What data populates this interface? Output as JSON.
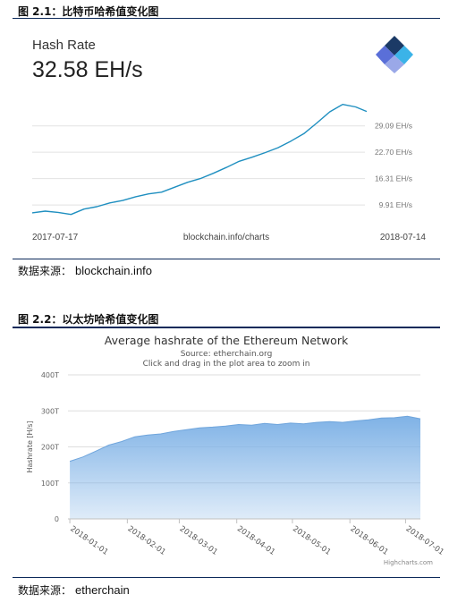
{
  "captions": {
    "fig1": "图 2.1：比特币哈希值变化图",
    "fig2": "图 2.2：以太坊哈希值变化图",
    "src1_prefix": "数据来源：",
    "src1_value": "blockchain.info",
    "src2_prefix": "数据来源：",
    "src2_value": "etherchain"
  },
  "chart1": {
    "label": "Hash Rate",
    "value": "32.58 EH/s",
    "date_start": "2017-07-17",
    "date_end": "2018-07-14",
    "source_text": "blockchain.info/charts",
    "logo_colors": [
      "#1b3a66",
      "#3bb3e8",
      "#5a6fd8",
      "#9aa8e8"
    ]
  },
  "chart2": {
    "title": "Average hashrate of the Ethereum Network",
    "subtitle1": "Source: etherchain.org",
    "subtitle2": "Click and drag in the plot area to zoom in",
    "credit": "Highcharts.com"
  },
  "chart_data": [
    {
      "type": "line",
      "title": "Hash Rate",
      "ylabel": "",
      "y_unit": "EH/s",
      "ylim": [
        4.5,
        37.5
      ],
      "ticks": [
        {
          "value": 9.91,
          "label": "9.91 EH/s"
        },
        {
          "value": 16.31,
          "label": "16.31 EH/s"
        },
        {
          "value": 22.7,
          "label": "22.70 EH/s"
        },
        {
          "value": 29.09,
          "label": "29.09 EH/s"
        }
      ],
      "x_labels": [
        "2017-07-17",
        "2018-07-14"
      ],
      "grid": true,
      "color": "#1f8fc0",
      "series": [
        {
          "x": [
            "2017-07-17",
            "2017-07-31",
            "2017-08-14",
            "2017-08-28",
            "2017-09-11",
            "2017-09-25",
            "2017-10-09",
            "2017-10-23",
            "2017-11-06",
            "2017-11-20",
            "2017-12-04",
            "2017-12-18",
            "2018-01-01",
            "2018-01-15",
            "2018-01-29",
            "2018-02-12",
            "2018-02-26",
            "2018-03-12",
            "2018-03-26",
            "2018-04-09",
            "2018-04-23",
            "2018-05-07",
            "2018-05-21",
            "2018-06-04",
            "2018-06-18",
            "2018-07-02",
            "2018-07-14"
          ],
          "values": [
            8.0,
            8.4,
            8.1,
            7.6,
            8.9,
            9.5,
            10.4,
            11.0,
            11.9,
            12.6,
            13.0,
            14.2,
            15.4,
            16.3,
            17.6,
            19.0,
            20.5,
            21.5,
            22.6,
            23.8,
            25.4,
            27.2,
            29.8,
            32.5,
            34.3,
            33.7,
            32.6
          ]
        }
      ]
    },
    {
      "type": "area",
      "title": "Average hashrate of the Ethereum Network",
      "ylabel": "Hashrate [H/s]",
      "ylim": [
        0,
        400
      ],
      "y_ticks": [
        "0",
        "100T",
        "200T",
        "300T",
        "400T"
      ],
      "x_ticks": [
        "2018-01-01",
        "2018-02-01",
        "2018-03-01",
        "2018-04-01",
        "2018-05-01",
        "2018-06-01",
        "2018-07-01"
      ],
      "grid": true,
      "color": "#7fb2e6",
      "series": [
        {
          "x": [
            "2018-01-01",
            "2018-01-08",
            "2018-01-15",
            "2018-01-22",
            "2018-01-29",
            "2018-02-05",
            "2018-02-12",
            "2018-02-19",
            "2018-02-26",
            "2018-03-05",
            "2018-03-12",
            "2018-03-19",
            "2018-03-26",
            "2018-04-02",
            "2018-04-09",
            "2018-04-16",
            "2018-04-23",
            "2018-04-30",
            "2018-05-07",
            "2018-05-14",
            "2018-05-21",
            "2018-05-28",
            "2018-06-04",
            "2018-06-11",
            "2018-06-18",
            "2018-06-25",
            "2018-07-02",
            "2018-07-09"
          ],
          "values": [
            160,
            172,
            188,
            205,
            215,
            228,
            233,
            236,
            243,
            248,
            253,
            255,
            258,
            262,
            260,
            265,
            262,
            266,
            264,
            268,
            270,
            268,
            272,
            275,
            280,
            281,
            285,
            278
          ]
        }
      ]
    }
  ]
}
